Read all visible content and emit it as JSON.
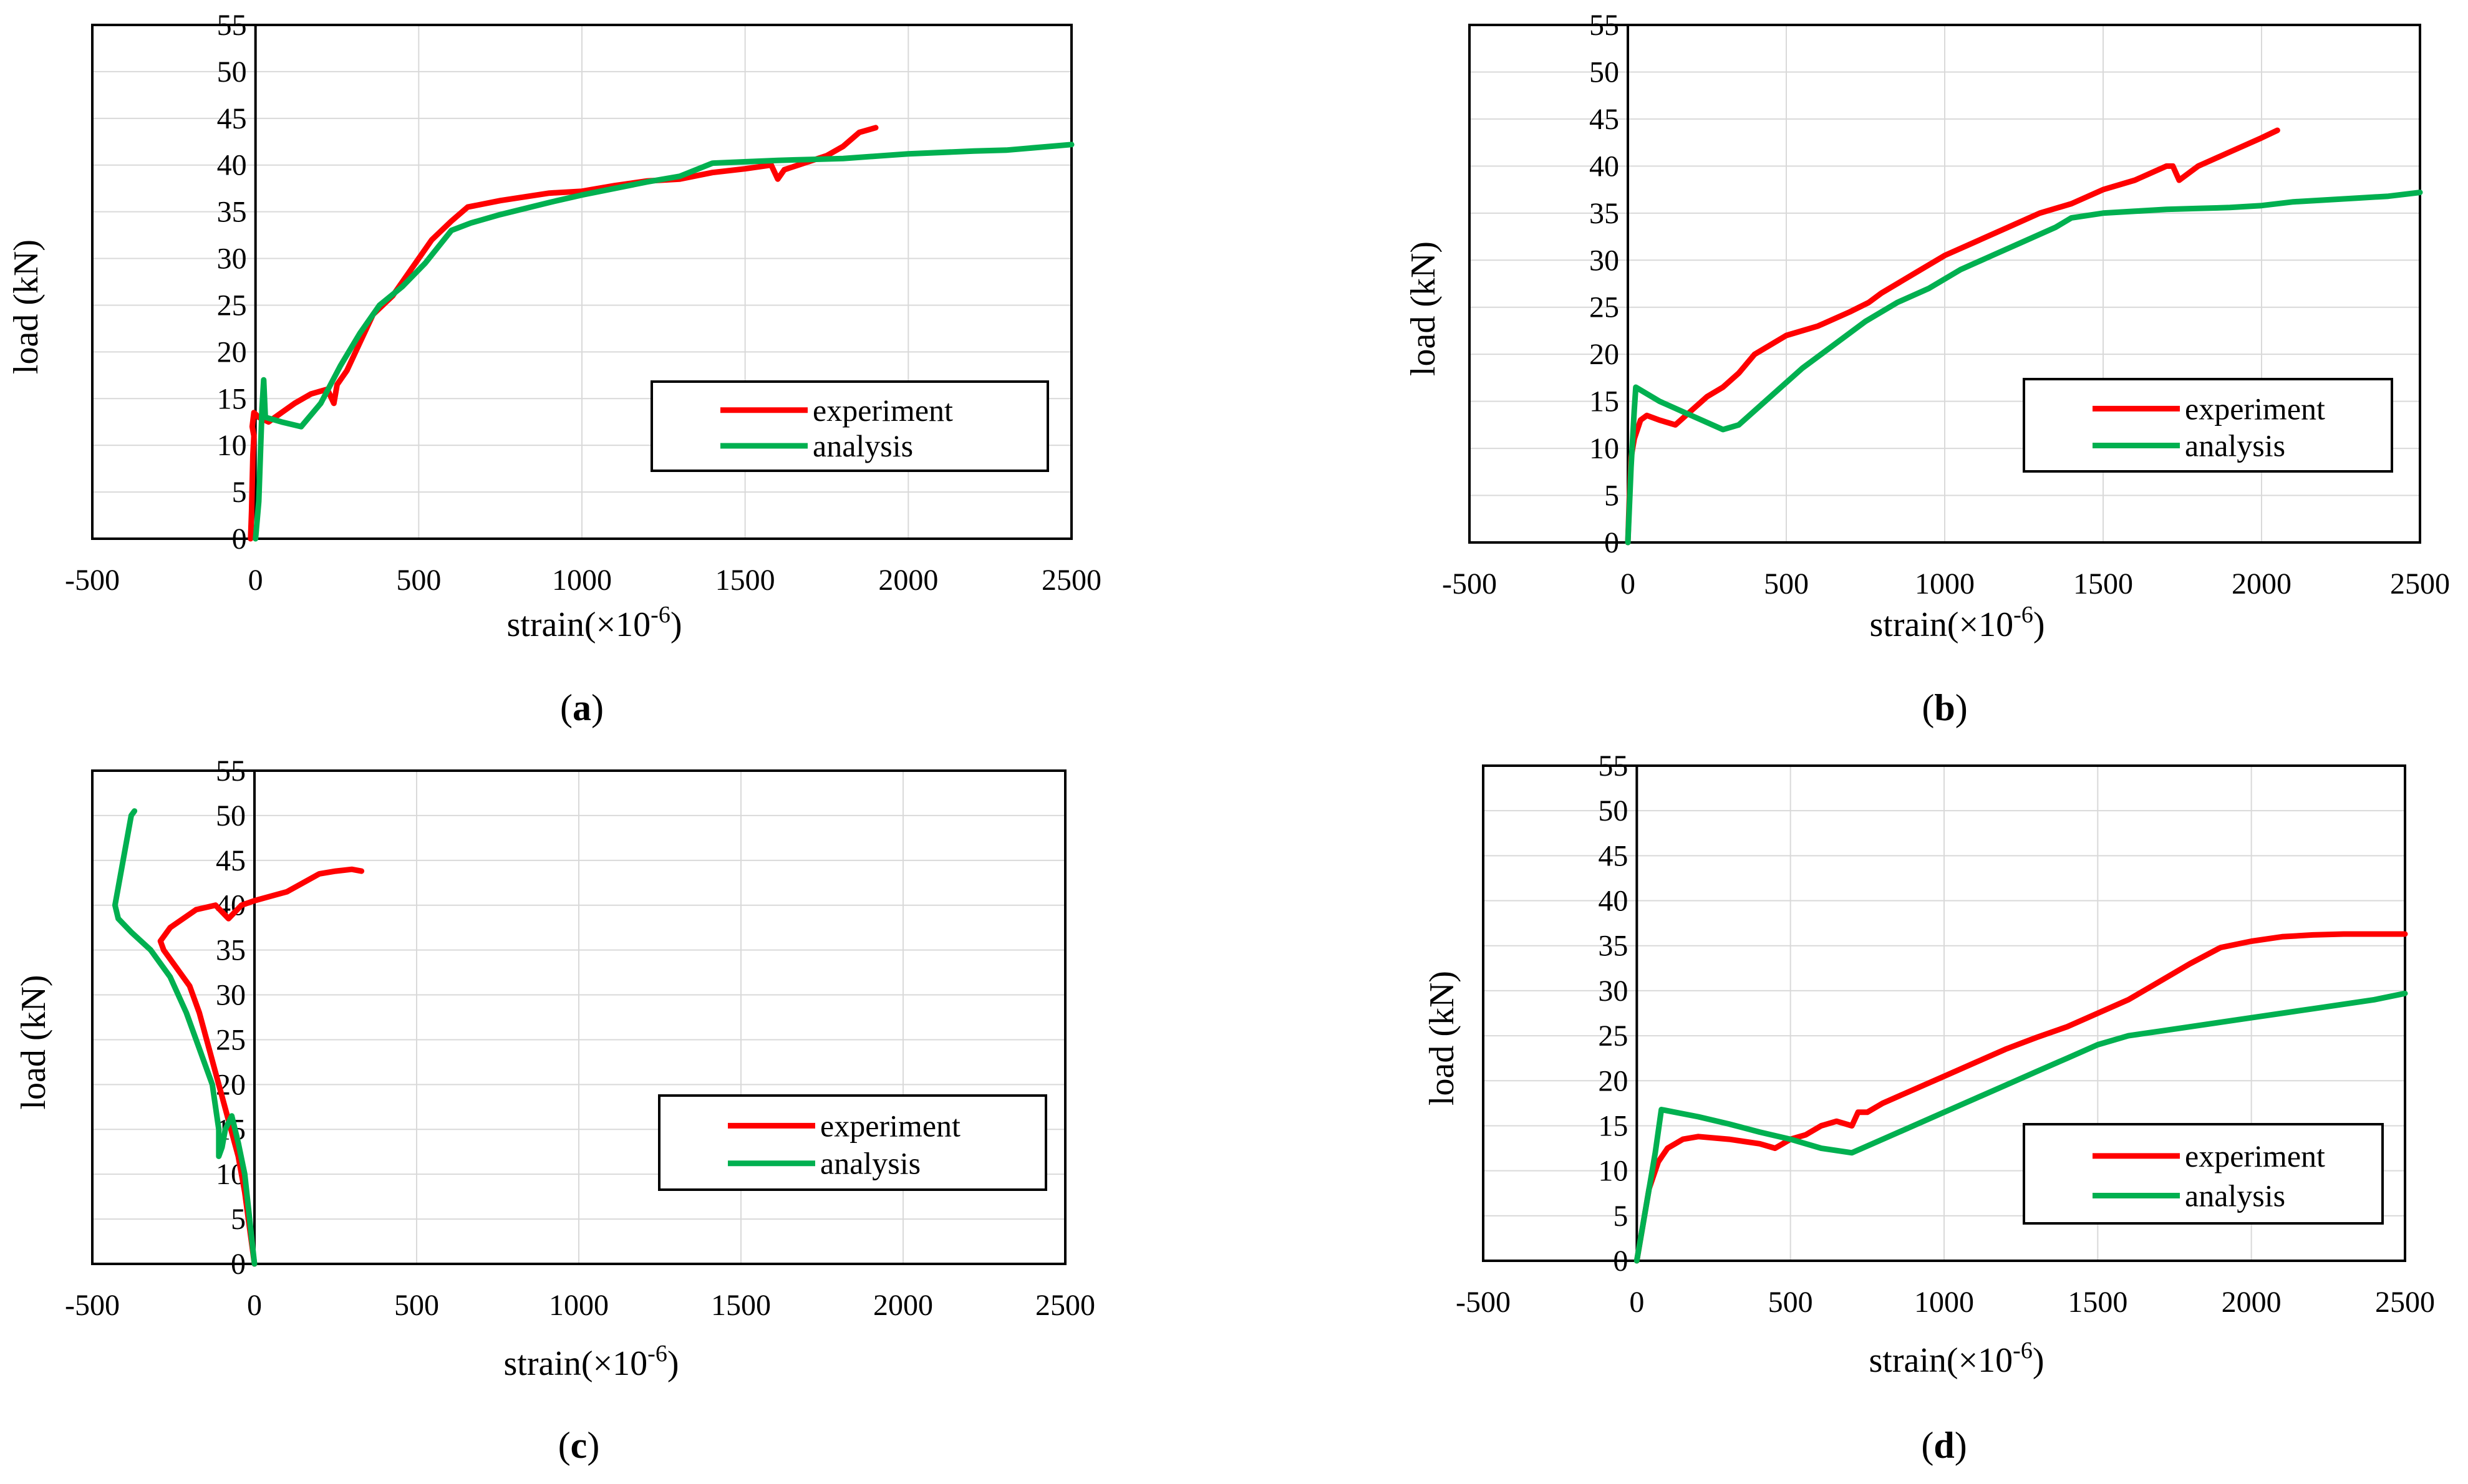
{
  "chart_data": [
    {
      "type": "line",
      "panel_label": "a",
      "xlabel": "strain(×10",
      "xlabel_sup": "-6",
      "xlabel_end": ")",
      "ylabel": "load (kN)",
      "xlim": [
        -500,
        2500
      ],
      "ylim": [
        0,
        55
      ],
      "xticks": [
        "-500",
        "0",
        "500",
        "1000",
        "1500",
        "2000",
        "2500"
      ],
      "yticks": [
        "0",
        "5",
        "10",
        "15",
        "20",
        "25",
        "30",
        "35",
        "40",
        "45",
        "50",
        "55"
      ],
      "legend_position": "center-right",
      "series": [
        {
          "name": "experiment",
          "color": "#ff0000",
          "points": [
            [
              -15,
              0
            ],
            [
              -12,
              3
            ],
            [
              -10,
              6
            ],
            [
              -8,
              9
            ],
            [
              -5,
              11
            ],
            [
              -10,
              12
            ],
            [
              -5,
              13.5
            ],
            [
              10,
              13
            ],
            [
              40,
              12.5
            ],
            [
              80,
              13.5
            ],
            [
              120,
              14.5
            ],
            [
              170,
              15.5
            ],
            [
              220,
              16
            ],
            [
              240,
              14.5
            ],
            [
              250,
              16.5
            ],
            [
              280,
              18
            ],
            [
              320,
              21
            ],
            [
              360,
              24
            ],
            [
              420,
              26
            ],
            [
              480,
              29
            ],
            [
              540,
              32
            ],
            [
              600,
              34
            ],
            [
              650,
              35.5
            ],
            [
              750,
              36.2
            ],
            [
              900,
              37
            ],
            [
              1000,
              37.2
            ],
            [
              1100,
              37.8
            ],
            [
              1200,
              38.3
            ],
            [
              1300,
              38.5
            ],
            [
              1400,
              39.2
            ],
            [
              1500,
              39.6
            ],
            [
              1580,
              40
            ],
            [
              1600,
              38.5
            ],
            [
              1620,
              39.5
            ],
            [
              1680,
              40.2
            ],
            [
              1750,
              41
            ],
            [
              1800,
              42
            ],
            [
              1850,
              43.5
            ],
            [
              1900,
              44
            ]
          ]
        },
        {
          "name": "analysis",
          "color": "#00b050",
          "points": [
            [
              0,
              0
            ],
            [
              10,
              4
            ],
            [
              15,
              9
            ],
            [
              20,
              14
            ],
            [
              25,
              17
            ],
            [
              30,
              13
            ],
            [
              80,
              12.5
            ],
            [
              140,
              12
            ],
            [
              200,
              14.5
            ],
            [
              260,
              18.5
            ],
            [
              320,
              22
            ],
            [
              380,
              25
            ],
            [
              450,
              27
            ],
            [
              520,
              29.5
            ],
            [
              600,
              33
            ],
            [
              660,
              33.8
            ],
            [
              750,
              34.7
            ],
            [
              900,
              36
            ],
            [
              1000,
              36.8
            ],
            [
              1200,
              38.2
            ],
            [
              1300,
              38.8
            ],
            [
              1400,
              40.2
            ],
            [
              1600,
              40.5
            ],
            [
              1700,
              40.6
            ],
            [
              1800,
              40.7
            ],
            [
              2000,
              41.2
            ],
            [
              2200,
              41.5
            ],
            [
              2300,
              41.6
            ],
            [
              2500,
              42.2
            ]
          ]
        }
      ]
    },
    {
      "type": "line",
      "panel_label": "b",
      "xlabel": "strain(×10",
      "xlabel_sup": "-6",
      "xlabel_end": ")",
      "ylabel": "load (kN)",
      "xlim": [
        -500,
        2500
      ],
      "ylim": [
        0,
        55
      ],
      "xticks": [
        "-500",
        "0",
        "500",
        "1000",
        "1500",
        "2000",
        "2500"
      ],
      "yticks": [
        "0",
        "5",
        "10",
        "15",
        "20",
        "25",
        "30",
        "35",
        "40",
        "45",
        "50",
        "55"
      ],
      "legend_position": "center-right",
      "series": [
        {
          "name": "experiment",
          "color": "#ff0000",
          "points": [
            [
              0,
              0
            ],
            [
              5,
              5
            ],
            [
              10,
              9
            ],
            [
              20,
              11
            ],
            [
              40,
              13
            ],
            [
              60,
              13.5
            ],
            [
              100,
              13
            ],
            [
              150,
              12.5
            ],
            [
              200,
              14
            ],
            [
              250,
              15.5
            ],
            [
              300,
              16.5
            ],
            [
              350,
              18
            ],
            [
              400,
              20
            ],
            [
              450,
              21
            ],
            [
              500,
              22
            ],
            [
              600,
              23
            ],
            [
              700,
              24.5
            ],
            [
              760,
              25.5
            ],
            [
              800,
              26.5
            ],
            [
              900,
              28.5
            ],
            [
              1000,
              30.5
            ],
            [
              1100,
              32
            ],
            [
              1200,
              33.5
            ],
            [
              1300,
              35
            ],
            [
              1400,
              36
            ],
            [
              1500,
              37.5
            ],
            [
              1600,
              38.5
            ],
            [
              1700,
              40
            ],
            [
              1720,
              40
            ],
            [
              1740,
              38.5
            ],
            [
              1800,
              40
            ],
            [
              1900,
              41.5
            ],
            [
              2000,
              43
            ],
            [
              2050,
              43.8
            ]
          ]
        },
        {
          "name": "analysis",
          "color": "#00b050",
          "points": [
            [
              0,
              0
            ],
            [
              10,
              8
            ],
            [
              20,
              14
            ],
            [
              25,
              16.5
            ],
            [
              100,
              15
            ],
            [
              200,
              13.5
            ],
            [
              300,
              12
            ],
            [
              350,
              12.5
            ],
            [
              450,
              15.5
            ],
            [
              550,
              18.5
            ],
            [
              650,
              21
            ],
            [
              750,
              23.5
            ],
            [
              850,
              25.5
            ],
            [
              950,
              27
            ],
            [
              1050,
              29
            ],
            [
              1150,
              30.5
            ],
            [
              1250,
              32
            ],
            [
              1350,
              33.5
            ],
            [
              1400,
              34.5
            ],
            [
              1500,
              35
            ],
            [
              1600,
              35.2
            ],
            [
              1700,
              35.4
            ],
            [
              1800,
              35.5
            ],
            [
              1900,
              35.6
            ],
            [
              2000,
              35.8
            ],
            [
              2100,
              36.2
            ],
            [
              2200,
              36.4
            ],
            [
              2300,
              36.6
            ],
            [
              2400,
              36.8
            ],
            [
              2500,
              37.2
            ]
          ]
        }
      ]
    },
    {
      "type": "line",
      "panel_label": "c",
      "xlabel": "strain(×10",
      "xlabel_sup": "-6",
      "xlabel_end": ")",
      "ylabel": "load (kN)",
      "xlim": [
        -500,
        2500
      ],
      "ylim": [
        0,
        55
      ],
      "xticks": [
        "-500",
        "0",
        "500",
        "1000",
        "1500",
        "2000",
        "2500"
      ],
      "yticks": [
        "0",
        "5",
        "10",
        "15",
        "20",
        "25",
        "30",
        "35",
        "40",
        "45",
        "50",
        "55"
      ],
      "legend_position": "center-right",
      "series": [
        {
          "name": "experiment",
          "color": "#ff0000",
          "points": [
            [
              0,
              0
            ],
            [
              -15,
              4
            ],
            [
              -30,
              8
            ],
            [
              -50,
              12
            ],
            [
              -80,
              16
            ],
            [
              -110,
              20
            ],
            [
              -140,
              24
            ],
            [
              -170,
              28
            ],
            [
              -200,
              31
            ],
            [
              -240,
              33
            ],
            [
              -280,
              35
            ],
            [
              -290,
              36
            ],
            [
              -260,
              37.5
            ],
            [
              -220,
              38.5
            ],
            [
              -180,
              39.5
            ],
            [
              -120,
              40
            ],
            [
              -80,
              38.5
            ],
            [
              -40,
              40
            ],
            [
              0,
              40.5
            ],
            [
              50,
              41
            ],
            [
              100,
              41.5
            ],
            [
              150,
              42.5
            ],
            [
              200,
              43.5
            ],
            [
              250,
              43.8
            ],
            [
              300,
              44
            ],
            [
              330,
              43.8
            ]
          ]
        },
        {
          "name": "analysis",
          "color": "#00b050",
          "points": [
            [
              0,
              0
            ],
            [
              -15,
              5
            ],
            [
              -30,
              10
            ],
            [
              -50,
              13.5
            ],
            [
              -70,
              16.5
            ],
            [
              -90,
              15
            ],
            [
              -100,
              13
            ],
            [
              -110,
              12
            ],
            [
              -110,
              15
            ],
            [
              -130,
              20
            ],
            [
              -170,
              24
            ],
            [
              -210,
              28
            ],
            [
              -260,
              32
            ],
            [
              -320,
              35
            ],
            [
              -380,
              37
            ],
            [
              -420,
              38.5
            ],
            [
              -430,
              40
            ],
            [
              -420,
              42
            ],
            [
              -410,
              44
            ],
            [
              -400,
              46
            ],
            [
              -390,
              48
            ],
            [
              -380,
              50
            ],
            [
              -370,
              50.5
            ]
          ]
        }
      ]
    },
    {
      "type": "line",
      "panel_label": "d",
      "xlabel": "strain(×10",
      "xlabel_sup": "-6",
      "xlabel_end": ")",
      "ylabel": "load (kN)",
      "xlim": [
        -500,
        2500
      ],
      "ylim": [
        0,
        55
      ],
      "xticks": [
        "-500",
        "0",
        "500",
        "1000",
        "1500",
        "2000",
        "2500"
      ],
      "yticks": [
        "0",
        "5",
        "10",
        "15",
        "20",
        "25",
        "30",
        "35",
        "40",
        "45",
        "50",
        "55"
      ],
      "legend_position": "center-right",
      "series": [
        {
          "name": "experiment",
          "color": "#ff0000",
          "points": [
            [
              0,
              0
            ],
            [
              20,
              4
            ],
            [
              40,
              8
            ],
            [
              70,
              11
            ],
            [
              100,
              12.5
            ],
            [
              150,
              13.5
            ],
            [
              200,
              13.8
            ],
            [
              300,
              13.5
            ],
            [
              400,
              13
            ],
            [
              450,
              12.5
            ],
            [
              500,
              13.5
            ],
            [
              550,
              14
            ],
            [
              600,
              15
            ],
            [
              650,
              15.5
            ],
            [
              700,
              15
            ],
            [
              720,
              16.5
            ],
            [
              750,
              16.5
            ],
            [
              800,
              17.5
            ],
            [
              900,
              19
            ],
            [
              1000,
              20.5
            ],
            [
              1100,
              22
            ],
            [
              1200,
              23.5
            ],
            [
              1300,
              24.8
            ],
            [
              1400,
              26
            ],
            [
              1500,
              27.5
            ],
            [
              1600,
              29
            ],
            [
              1700,
              31
            ],
            [
              1800,
              33
            ],
            [
              1900,
              34.8
            ],
            [
              2000,
              35.5
            ],
            [
              2100,
              36
            ],
            [
              2200,
              36.2
            ],
            [
              2300,
              36.3
            ],
            [
              2500,
              36.3
            ]
          ]
        },
        {
          "name": "analysis",
          "color": "#00b050",
          "points": [
            [
              0,
              0
            ],
            [
              30,
              6
            ],
            [
              60,
              12
            ],
            [
              80,
              16.8
            ],
            [
              200,
              16
            ],
            [
              300,
              15.2
            ],
            [
              400,
              14.3
            ],
            [
              500,
              13.5
            ],
            [
              600,
              12.5
            ],
            [
              700,
              12
            ],
            [
              800,
              13.5
            ],
            [
              900,
              15
            ],
            [
              1000,
              16.5
            ],
            [
              1100,
              18
            ],
            [
              1200,
              19.5
            ],
            [
              1300,
              21
            ],
            [
              1400,
              22.5
            ],
            [
              1500,
              24
            ],
            [
              1600,
              25
            ],
            [
              1700,
              25.5
            ],
            [
              1800,
              26
            ],
            [
              1900,
              26.5
            ],
            [
              2000,
              27
            ],
            [
              2100,
              27.5
            ],
            [
              2200,
              28
            ],
            [
              2300,
              28.5
            ],
            [
              2400,
              29
            ],
            [
              2500,
              29.7
            ]
          ]
        }
      ]
    }
  ]
}
